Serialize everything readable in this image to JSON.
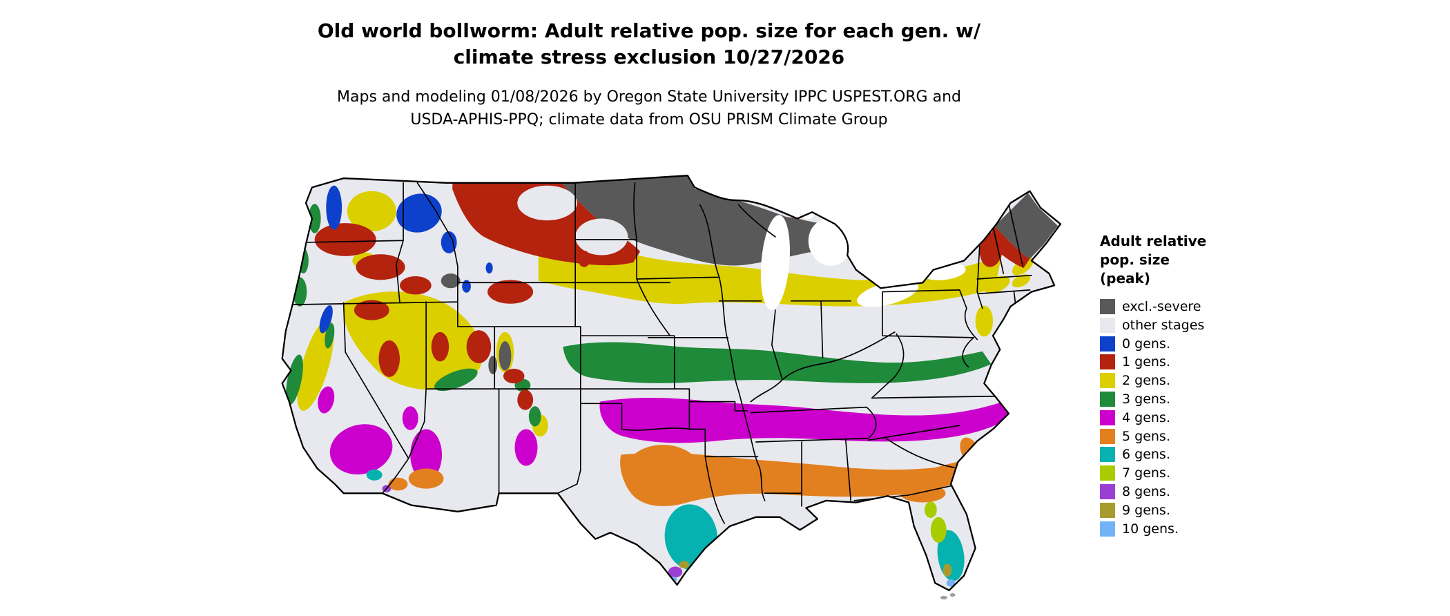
{
  "title": {
    "line1": "Old world bollworm: Adult relative pop. size for each gen. w/",
    "line2": "climate stress exclusion 10/27/2026"
  },
  "subtitle": {
    "line1": "Maps and modeling 01/08/2026 by Oregon State University IPPC USPEST.ORG and",
    "line2": "USDA-APHIS-PPQ; climate data from OSU PRISM Climate Group"
  },
  "legend": {
    "title_line1": "Adult relative",
    "title_line2": "pop. size",
    "title_line3": "(peak)",
    "items": [
      {
        "label": "excl.-severe",
        "color": "#595959"
      },
      {
        "label": "other stages",
        "color": "#e8e9ee"
      },
      {
        "label": "0 gens.",
        "color": "#0d41cc"
      },
      {
        "label": "1 gens.",
        "color": "#b3230e"
      },
      {
        "label": "2 gens.",
        "color": "#dccf00"
      },
      {
        "label": "3 gens.",
        "color": "#1f8a3a"
      },
      {
        "label": "4 gens.",
        "color": "#cc00cc"
      },
      {
        "label": "5 gens.",
        "color": "#e2801f"
      },
      {
        "label": "6 gens.",
        "color": "#06b2af"
      },
      {
        "label": "7 gens.",
        "color": "#a8cc00"
      },
      {
        "label": "8 gens.",
        "color": "#9a3fd1"
      },
      {
        "label": "9 gens.",
        "color": "#a89b2d"
      },
      {
        "label": "10 gens.",
        "color": "#74b2f6"
      }
    ]
  },
  "map": {
    "region": "Conterminous United States",
    "outline_color": "#000000",
    "water_color": "#ffffff"
  }
}
